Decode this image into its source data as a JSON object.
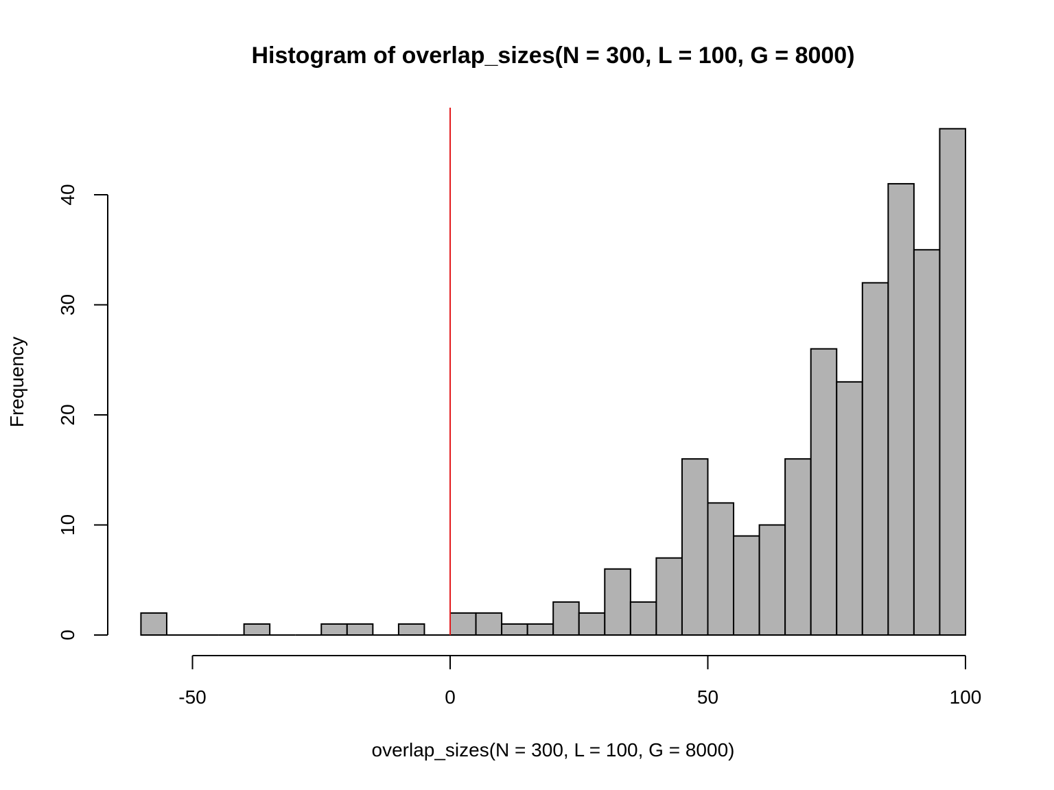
{
  "chart_data": {
    "type": "bar",
    "title": "Histogram of overlap_sizes(N = 300, L = 100, G = 8000)",
    "xlabel": "overlap_sizes(N = 300, L = 100, G = 8000)",
    "ylabel": "Frequency",
    "xlim": [
      -65,
      100
    ],
    "ylim": [
      0,
      46
    ],
    "bin_width": 5,
    "x_ticks": [
      -50,
      0,
      50,
      100
    ],
    "y_ticks": [
      0,
      10,
      20,
      30,
      40
    ],
    "bins": [
      {
        "start": -60,
        "count": 2
      },
      {
        "start": -55,
        "count": 0
      },
      {
        "start": -50,
        "count": 0
      },
      {
        "start": -45,
        "count": 0
      },
      {
        "start": -40,
        "count": 1
      },
      {
        "start": -35,
        "count": 0
      },
      {
        "start": -30,
        "count": 0
      },
      {
        "start": -25,
        "count": 1
      },
      {
        "start": -20,
        "count": 1
      },
      {
        "start": -15,
        "count": 0
      },
      {
        "start": -10,
        "count": 1
      },
      {
        "start": -5,
        "count": 0
      },
      {
        "start": 0,
        "count": 2
      },
      {
        "start": 5,
        "count": 2
      },
      {
        "start": 10,
        "count": 1
      },
      {
        "start": 15,
        "count": 1
      },
      {
        "start": 20,
        "count": 3
      },
      {
        "start": 25,
        "count": 2
      },
      {
        "start": 30,
        "count": 6
      },
      {
        "start": 35,
        "count": 3
      },
      {
        "start": 40,
        "count": 7
      },
      {
        "start": 45,
        "count": 16
      },
      {
        "start": 50,
        "count": 12
      },
      {
        "start": 55,
        "count": 9
      },
      {
        "start": 60,
        "count": 10
      },
      {
        "start": 65,
        "count": 16
      },
      {
        "start": 70,
        "count": 26
      },
      {
        "start": 75,
        "count": 23
      },
      {
        "start": 80,
        "count": 32
      },
      {
        "start": 85,
        "count": 41
      },
      {
        "start": 90,
        "count": 35
      },
      {
        "start": 95,
        "count": 46
      }
    ],
    "reference_line": {
      "x": 0,
      "color": "#e31a1c"
    },
    "bar_fill": "#b2b2b2",
    "bar_stroke": "#000000",
    "grid": false
  }
}
